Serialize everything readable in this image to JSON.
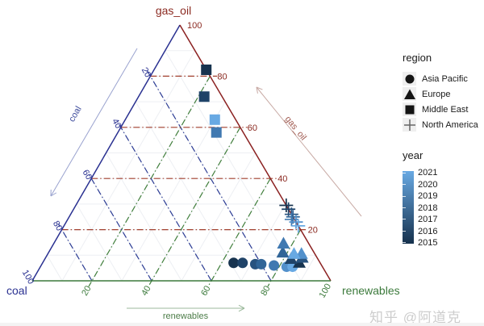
{
  "title": "gas_oil",
  "corner_labels": {
    "bottom_left": "coal",
    "bottom_right": "renewables"
  },
  "watermark": "知乎 @阿道克",
  "legend": {
    "region": {
      "title": "region",
      "items": [
        {
          "label": "Asia Pacific",
          "shape": "circle"
        },
        {
          "label": "Europe",
          "shape": "triangle"
        },
        {
          "label": "Middle East",
          "shape": "square"
        },
        {
          "label": "North America",
          "shape": "plus"
        }
      ],
      "key_bg": "#efefef",
      "symbol_color": "#141414",
      "plus_symbol_color": "#666666"
    },
    "year": {
      "title": "year",
      "labels": [
        "2021",
        "2020",
        "2019",
        "2018",
        "2017",
        "2016",
        "2015"
      ],
      "gradient_top": "#68a9e3",
      "gradient_bottom": "#16314d"
    }
  },
  "chart_data": {
    "type": "ternary-scatter",
    "axes": {
      "top": {
        "label": "gas_oil",
        "color": "#8b2a21",
        "grid_color": "#a2402e",
        "arrow_label": "gas_oil",
        "arrow_color": "#c8aaa4",
        "arrow_label_color": "#a05a50"
      },
      "left": {
        "label": "coal",
        "color": "#2a3191",
        "grid_color": "#2c3c94",
        "arrow_label": "coal",
        "arrow_color": "#9aa3cf",
        "arrow_label_color": "#414f9e"
      },
      "bottom": {
        "label": "renewables",
        "color": "#3c7a3c",
        "grid_color": "#417f3c",
        "arrow_label": "renewables",
        "arrow_color": "#9cba9c",
        "arrow_label_color": "#4d7d49"
      }
    },
    "ticks": {
      "gas_oil": [
        20,
        40,
        60,
        80,
        100
      ],
      "coal": [
        20,
        40,
        60,
        80,
        100
      ],
      "renewables": [
        20,
        40,
        60,
        80,
        100
      ]
    },
    "gridlines": {
      "major": [
        20,
        40,
        60,
        80
      ],
      "minor": [
        10,
        30,
        50,
        70,
        90
      ]
    },
    "minor_grid_color": "#edeff3",
    "year_colors": {
      "2015": "#17334f",
      "2016": "#1f4368",
      "2017": "#28537f",
      "2018": "#316597",
      "2019": "#4079b1",
      "2020": "#5290cb",
      "2021": "#68a9e3"
    },
    "series": [
      {
        "name": "Asia Pacific",
        "shape": "circle",
        "points": [
          {
            "year": 2015,
            "coal": 29,
            "renewables": 64,
            "gas_oil": 7
          },
          {
            "year": 2016,
            "coal": 26,
            "renewables": 67,
            "gas_oil": 7
          },
          {
            "year": 2017,
            "coal": 22,
            "renewables": 71.5,
            "gas_oil": 6.5
          },
          {
            "year": 2018,
            "coal": 20,
            "renewables": 73.5,
            "gas_oil": 6.5
          },
          {
            "year": 2019,
            "coal": 16,
            "renewables": 78,
            "gas_oil": 6
          },
          {
            "year": 2020,
            "coal": 12,
            "renewables": 82.5,
            "gas_oil": 5.5
          },
          {
            "year": 2021,
            "coal": 10,
            "renewables": 84.5,
            "gas_oil": 5.5
          }
        ]
      },
      {
        "name": "Europe",
        "shape": "triangle",
        "points": [
          {
            "year": 2015,
            "coal": 7,
            "renewables": 86,
            "gas_oil": 7
          },
          {
            "year": 2016,
            "coal": 9,
            "renewables": 82.5,
            "gas_oil": 8.5
          },
          {
            "year": 2017,
            "coal": 5,
            "renewables": 86,
            "gas_oil": 9
          },
          {
            "year": 2018,
            "coal": 10.5,
            "renewables": 78.5,
            "gas_oil": 11
          },
          {
            "year": 2019,
            "coal": 8.5,
            "renewables": 77,
            "gas_oil": 14.5
          },
          {
            "year": 2020,
            "coal": 4.5,
            "renewables": 85,
            "gas_oil": 10.5
          },
          {
            "year": 2021,
            "coal": 7,
            "renewables": 82.5,
            "gas_oil": 10.5
          }
        ]
      },
      {
        "name": "Middle East",
        "shape": "square",
        "points": [
          {
            "year": 2015,
            "coal": 0,
            "renewables": 17.5,
            "gas_oil": 82.5
          },
          {
            "year": 2016,
            "coal": 6,
            "renewables": 22,
            "gas_oil": 72
          },
          {
            "year": 2019,
            "coal": 9,
            "renewables": 33,
            "gas_oil": 58
          },
          {
            "year": 2021,
            "coal": 7,
            "renewables": 30,
            "gas_oil": 63
          }
        ]
      },
      {
        "name": "North America",
        "shape": "plus",
        "points": [
          {
            "year": 2015,
            "coal": 0,
            "renewables": 70.5,
            "gas_oil": 29.5
          },
          {
            "year": 2016,
            "coal": 0,
            "renewables": 72,
            "gas_oil": 28
          },
          {
            "year": 2017,
            "coal": 0,
            "renewables": 74,
            "gas_oil": 26
          },
          {
            "year": 2018,
            "coal": 0,
            "renewables": 75,
            "gas_oil": 25
          },
          {
            "year": 2019,
            "coal": 1,
            "renewables": 75,
            "gas_oil": 24
          },
          {
            "year": 2020,
            "coal": 0,
            "renewables": 77,
            "gas_oil": 23
          },
          {
            "year": 2021,
            "coal": 0,
            "renewables": 78.5,
            "gas_oil": 21.5
          }
        ]
      }
    ]
  }
}
